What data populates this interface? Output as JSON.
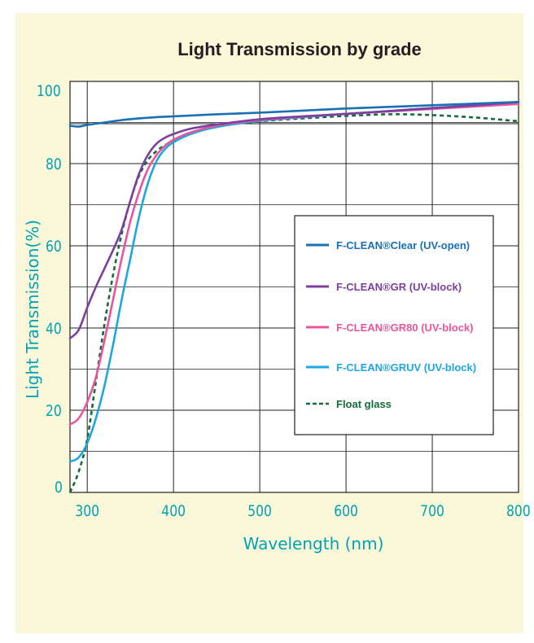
{
  "chart_data": {
    "type": "line",
    "title": "Light Transmission by grade",
    "xlabel": "Wavelength (nm)",
    "ylabel": "Light Transmission(%)",
    "xlim": [
      280,
      800
    ],
    "ylim": [
      0,
      100
    ],
    "xticks": [
      300,
      400,
      500,
      600,
      700,
      800
    ],
    "yticks": [
      0,
      20,
      40,
      60,
      80,
      100
    ],
    "grid": true,
    "legend_position": "right",
    "series": [
      {
        "name": "F-CLEAN®Clear (UV-open)",
        "color": "#1a6fb5",
        "dash": false,
        "x": [
          280,
          290,
          300,
          320,
          340,
          360,
          380,
          400,
          450,
          500,
          550,
          600,
          650,
          700,
          750,
          800
        ],
        "y": [
          89.2,
          89.0,
          89.4,
          90.0,
          90.6,
          91.0,
          91.3,
          91.5,
          92.0,
          92.4,
          92.9,
          93.4,
          93.8,
          94.2,
          94.6,
          95.0
        ]
      },
      {
        "name": "F-CLEAN®GR (UV-block)",
        "color": "#7b3fa0",
        "dash": false,
        "x": [
          280,
          290,
          300,
          310,
          320,
          330,
          340,
          350,
          360,
          370,
          380,
          390,
          400,
          420,
          450,
          500,
          550,
          600,
          650,
          700,
          750,
          800
        ],
        "y": [
          37.5,
          39.5,
          45,
          50,
          54.5,
          59,
          64,
          71,
          77.5,
          82,
          84.8,
          86.3,
          87.2,
          88.5,
          89.5,
          90.8,
          91.5,
          92.1,
          92.8,
          93.5,
          94.2,
          95.0
        ]
      },
      {
        "name": "F-CLEAN®GR80 (UV-block)",
        "color": "#e8559a",
        "dash": false,
        "x": [
          280,
          290,
          300,
          310,
          320,
          330,
          340,
          350,
          360,
          370,
          380,
          390,
          400,
          420,
          450,
          500,
          550,
          600,
          650,
          700,
          750,
          800
        ],
        "y": [
          16.5,
          18,
          22,
          28,
          37,
          47,
          57,
          66,
          73,
          78.5,
          82,
          84.3,
          85.8,
          87.6,
          89.2,
          90.6,
          91.4,
          92.1,
          92.7,
          93.3,
          93.9,
          94.5
        ]
      },
      {
        "name": "F-CLEAN®GRUV (UV-block)",
        "color": "#1ea6e0",
        "dash": false,
        "x": [
          280,
          290,
          300,
          310,
          320,
          330,
          340,
          350,
          360,
          370,
          380,
          390,
          400,
          420,
          450,
          500,
          550,
          600,
          650,
          700,
          750,
          800
        ],
        "y": [
          7.5,
          8.5,
          12,
          18,
          26,
          36,
          47,
          57,
          67,
          75,
          80.5,
          83.5,
          85.2,
          87.2,
          88.9,
          90.4,
          91.3,
          92.1,
          92.8,
          93.5,
          94.2,
          95.0
        ]
      },
      {
        "name": "Float glass",
        "color": "#136b3a",
        "dash": true,
        "x": [
          280,
          290,
          300,
          310,
          320,
          330,
          340,
          350,
          360,
          370,
          380,
          390,
          400,
          420,
          450,
          500,
          550,
          600,
          650,
          700,
          750,
          800
        ],
        "y": [
          0,
          5,
          13,
          27,
          41,
          53,
          63,
          71,
          77,
          80.8,
          83,
          84.5,
          85.5,
          87.3,
          89,
          90.3,
          91,
          91.6,
          92,
          91.8,
          91.2,
          90.3
        ]
      }
    ]
  }
}
